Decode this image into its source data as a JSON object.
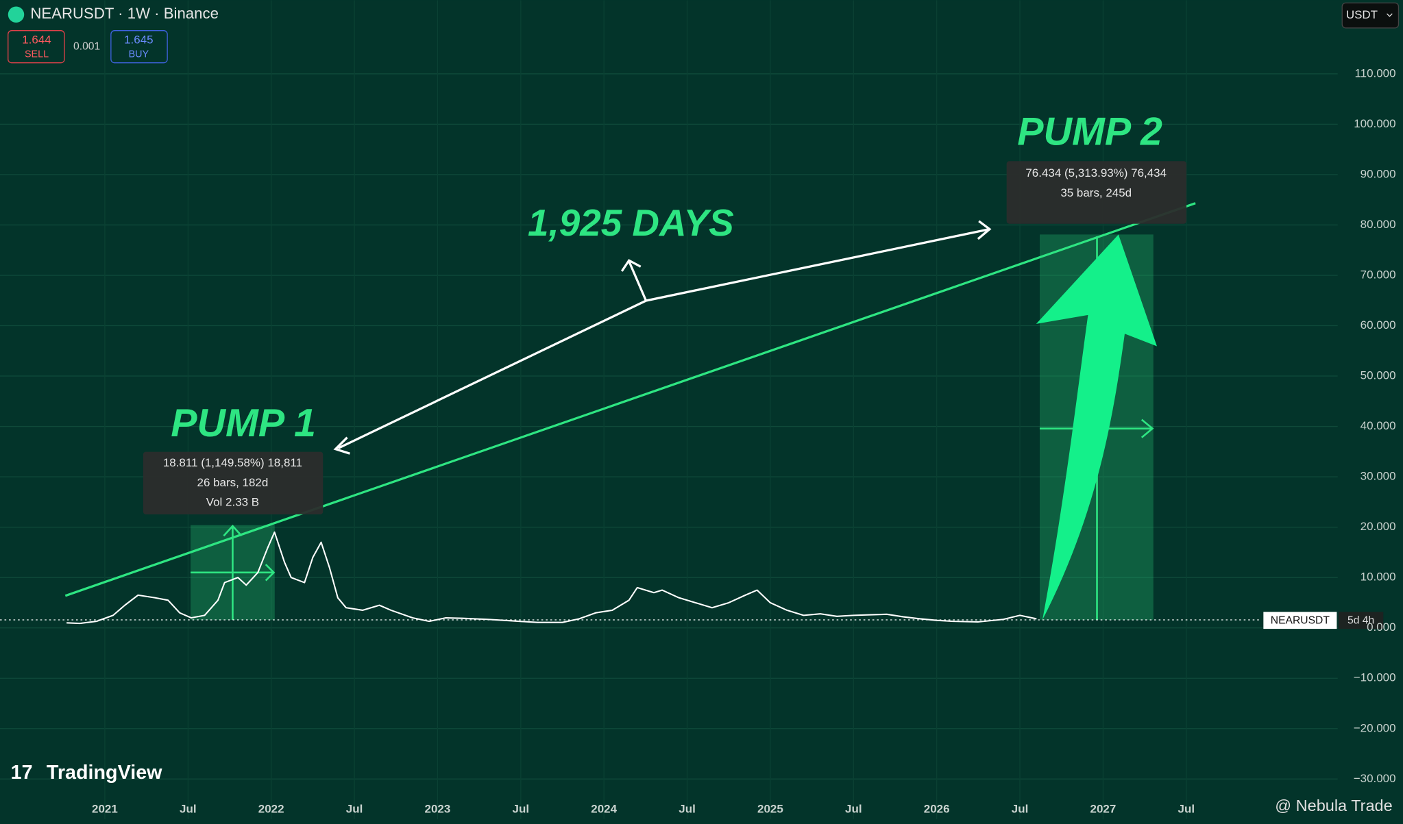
{
  "ui": {
    "symbol_title": "NEARUSDT · 1W · Binance",
    "sell_price": "1.644",
    "sell_label": "SELL",
    "spread": "0.001",
    "buy_price": "1.645",
    "buy_label": "BUY",
    "currency": "USDT",
    "price_label": "NEARUSDT",
    "countdown": "5d 4h",
    "logo": "TradingView",
    "watermark": "@ Nebula Trade"
  },
  "chart_data": {
    "type": "line",
    "annotations": {
      "pump1": "PUMP 1",
      "pump2": "PUMP 2",
      "days": "1,925 DAYS",
      "tooltip1": [
        "18.811 (1,149.58%) 18,811",
        "26 bars, 182d",
        "Vol 2.33 B"
      ],
      "tooltip2": [
        "76.434 (5,313.93%) 76,434",
        "35 bars, 245d"
      ]
    },
    "xlim": [
      2020.37,
      2028.41
    ],
    "xticks": [
      {
        "value": 2021,
        "label": "2021"
      },
      {
        "value": 2021.5,
        "label": "Jul"
      },
      {
        "value": 2022,
        "label": "2022"
      },
      {
        "value": 2022.5,
        "label": "Jul"
      },
      {
        "value": 2023,
        "label": "2023"
      },
      {
        "value": 2023.5,
        "label": "Jul"
      },
      {
        "value": 2024,
        "label": "2024"
      },
      {
        "value": 2024.5,
        "label": "Jul"
      },
      {
        "value": 2025,
        "label": "2025"
      },
      {
        "value": 2025.5,
        "label": "Jul"
      },
      {
        "value": 2026,
        "label": "2026"
      },
      {
        "value": 2026.5,
        "label": "Jul"
      },
      {
        "value": 2027,
        "label": "2027"
      },
      {
        "value": 2027.5,
        "label": "Jul"
      }
    ],
    "ylim": [
      -38,
      120
    ],
    "yticks": [
      {
        "value": -30,
        "label": "−30.000"
      },
      {
        "value": -20,
        "label": "−20.000"
      },
      {
        "value": -10,
        "label": "−10.000"
      },
      {
        "value": 0,
        "label": "0.000"
      },
      {
        "value": 10,
        "label": "10.000"
      },
      {
        "value": 20,
        "label": "20.000"
      },
      {
        "value": 30,
        "label": "30.000"
      },
      {
        "value": 40,
        "label": "40.000"
      },
      {
        "value": 50,
        "label": "50.000"
      },
      {
        "value": 60,
        "label": "60.000"
      },
      {
        "value": 70,
        "label": "70.000"
      },
      {
        "value": 80,
        "label": "80.000"
      },
      {
        "value": 90,
        "label": "90.000"
      },
      {
        "value": 100,
        "label": "100.000"
      },
      {
        "value": 110,
        "label": "110.000"
      }
    ],
    "grid": true,
    "series": [
      {
        "name": "NEARUSDT",
        "color": "#ffffff",
        "x": [
          2020.77,
          2020.85,
          2020.95,
          2021.05,
          2021.12,
          2021.2,
          2021.3,
          2021.38,
          2021.45,
          2021.52,
          2021.6,
          2021.68,
          2021.72,
          2021.8,
          2021.85,
          2021.92,
          2021.98,
          2022.02,
          2022.08,
          2022.12,
          2022.2,
          2022.25,
          2022.3,
          2022.35,
          2022.4,
          2022.45,
          2022.55,
          2022.65,
          2022.72,
          2022.85,
          2022.95,
          2023.05,
          2023.15,
          2023.3,
          2023.45,
          2023.6,
          2023.75,
          2023.85,
          2023.95,
          2024.05,
          2024.15,
          2024.2,
          2024.3,
          2024.35,
          2024.45,
          2024.55,
          2024.65,
          2024.75,
          2024.85,
          2024.92,
          2025.0,
          2025.1,
          2025.2,
          2025.3,
          2025.4,
          2025.5,
          2025.6,
          2025.7,
          2025.8,
          2025.9,
          2026.0,
          2026.1,
          2026.25,
          2026.4,
          2026.5,
          2026.6
        ],
        "values": [
          1.0,
          0.9,
          1.3,
          2.5,
          4.5,
          6.5,
          6.0,
          5.5,
          3.0,
          2.0,
          2.5,
          5.5,
          9.0,
          10,
          8.5,
          11,
          16,
          19,
          13,
          10,
          9,
          14,
          17,
          12,
          6,
          4,
          3.5,
          4.5,
          3.5,
          2.0,
          1.3,
          2.0,
          1.9,
          1.7,
          1.4,
          1.1,
          1.1,
          1.8,
          3.0,
          3.5,
          5.5,
          8.0,
          7.0,
          7.5,
          6.0,
          5.0,
          4.0,
          5.0,
          6.5,
          7.5,
          5.0,
          3.5,
          2.5,
          2.8,
          2.3,
          2.5,
          2.6,
          2.7,
          2.2,
          1.8,
          1.5,
          1.3,
          1.2,
          1.7,
          2.5,
          1.8
        ]
      }
    ]
  }
}
